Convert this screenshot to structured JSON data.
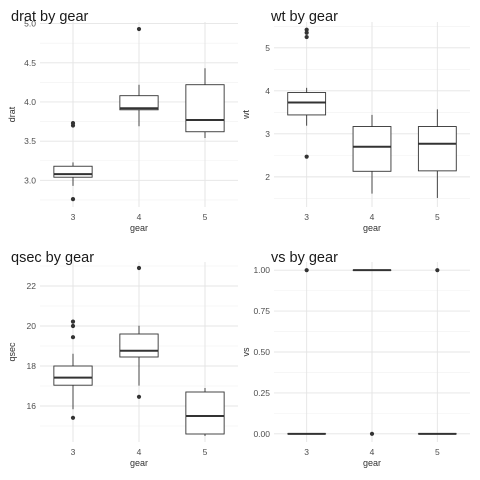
{
  "chart_data": [
    {
      "type": "box",
      "title": "drat by gear",
      "xlabel": "gear",
      "ylabel": "drat",
      "categories": [
        "3",
        "4",
        "5"
      ],
      "ylim": [
        2.66,
        5.02
      ],
      "yticks": [
        3.0,
        3.5,
        4.0,
        4.5,
        5.0
      ],
      "ytick_labels": [
        "3.0",
        "3.5",
        "4.0",
        "4.5",
        "5.0"
      ],
      "boxes": [
        {
          "q1": 3.04,
          "median": 3.08,
          "q3": 3.18,
          "whisker_low": 2.93,
          "whisker_high": 3.23,
          "outliers": [
            3.7,
            3.73,
            2.76
          ]
        },
        {
          "q1": 3.9,
          "median": 3.92,
          "q3": 4.08,
          "whisker_low": 3.69,
          "whisker_high": 4.22,
          "outliers": [
            4.93
          ]
        },
        {
          "q1": 3.62,
          "median": 3.77,
          "q3": 4.22,
          "whisker_low": 3.54,
          "whisker_high": 4.43,
          "outliers": []
        }
      ]
    },
    {
      "type": "box",
      "title": "wt by gear",
      "xlabel": "gear",
      "ylabel": "wt",
      "categories": [
        "3",
        "4",
        "5"
      ],
      "ylim": [
        1.3,
        5.6
      ],
      "yticks": [
        2,
        3,
        4,
        5
      ],
      "ytick_labels": [
        "2",
        "3",
        "4",
        "5"
      ],
      "boxes": [
        {
          "q1": 3.44,
          "median": 3.73,
          "q3": 3.96,
          "whisker_low": 3.19,
          "whisker_high": 4.07,
          "outliers": [
            5.42,
            5.35,
            5.25,
            2.47
          ]
        },
        {
          "q1": 2.13,
          "median": 2.7,
          "q3": 3.17,
          "whisker_low": 1.61,
          "whisker_high": 3.44,
          "outliers": []
        },
        {
          "q1": 2.14,
          "median": 2.77,
          "q3": 3.17,
          "whisker_low": 1.51,
          "whisker_high": 3.57,
          "outliers": []
        }
      ]
    },
    {
      "type": "box",
      "title": "qsec by gear",
      "xlabel": "gear",
      "ylabel": "qsec",
      "categories": [
        "3",
        "4",
        "5"
      ],
      "ylim": [
        14.2,
        23.2
      ],
      "yticks": [
        16,
        18,
        20,
        22
      ],
      "ytick_labels": [
        "16",
        "18",
        "20",
        "22"
      ],
      "boxes": [
        {
          "q1": 17.04,
          "median": 17.42,
          "q3": 18.0,
          "whisker_low": 15.84,
          "whisker_high": 18.61,
          "outliers": [
            20.22,
            20.0,
            19.44,
            15.41
          ]
        },
        {
          "q1": 18.45,
          "median": 18.76,
          "q3": 19.6,
          "whisker_low": 17.02,
          "whisker_high": 20.01,
          "outliers": [
            22.9,
            16.46
          ]
        },
        {
          "q1": 14.6,
          "median": 15.5,
          "q3": 16.7,
          "whisker_low": 14.5,
          "whisker_high": 16.9,
          "outliers": []
        }
      ]
    },
    {
      "type": "box",
      "title": "vs by gear",
      "xlabel": "gear",
      "ylabel": "vs",
      "categories": [
        "3",
        "4",
        "5"
      ],
      "ylim": [
        -0.05,
        1.05
      ],
      "yticks": [
        0.0,
        0.25,
        0.5,
        0.75,
        1.0
      ],
      "ytick_labels": [
        "0.00",
        "0.25",
        "0.50",
        "0.75",
        "1.00"
      ],
      "boxes": [
        {
          "q1": 0,
          "median": 0,
          "q3": 0,
          "whisker_low": 0,
          "whisker_high": 0,
          "outliers": [
            1.0
          ]
        },
        {
          "q1": 1,
          "median": 1,
          "q3": 1,
          "whisker_low": 1,
          "whisker_high": 1,
          "outliers": [
            0.0
          ]
        },
        {
          "q1": 0,
          "median": 0,
          "q3": 0,
          "whisker_low": 0,
          "whisker_high": 0,
          "outliers": [
            1.0
          ]
        }
      ]
    }
  ]
}
